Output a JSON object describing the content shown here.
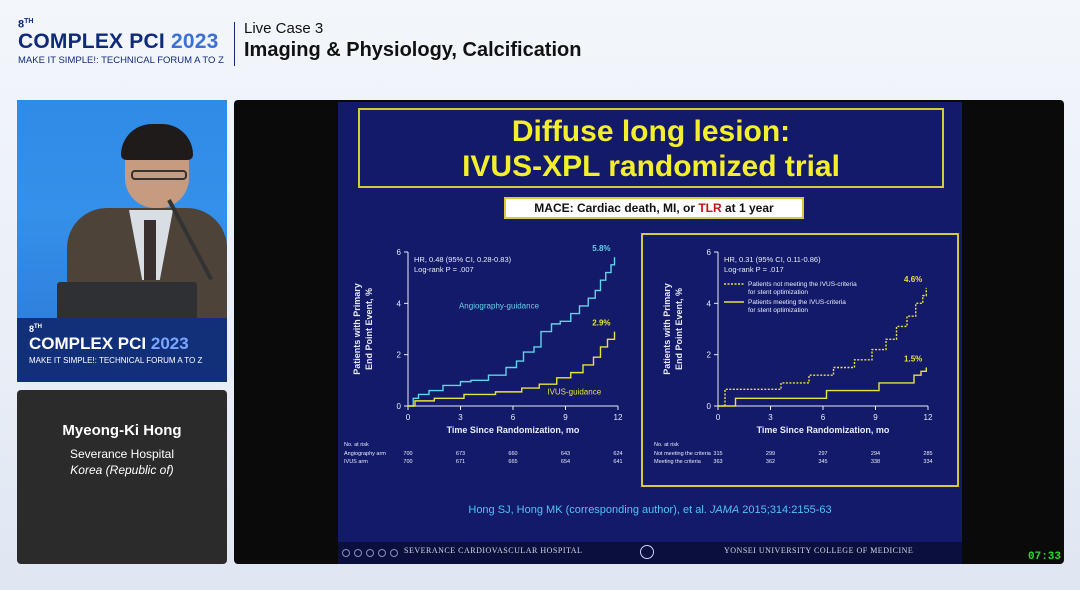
{
  "header": {
    "edition": "8",
    "edition_suffix": "TH",
    "event_name": "COMPLEX PCI",
    "event_year": "2023",
    "tagline": "MAKE IT SIMPLE!: TECHNICAL FORUM A TO Z",
    "session_case": "Live Case 3",
    "session_topic": "Imaging & Physiology, Calcification"
  },
  "speaker": {
    "name": "Myeong-Ki Hong",
    "affiliation": "Severance Hospital",
    "country": "Korea (Republic of)"
  },
  "podium": {
    "edition": "8",
    "edition_suffix": "TH",
    "event_name": "COMPLEX PCI",
    "event_year": "2023",
    "tagline": "MAKE IT SIMPLE!: TECHNICAL FORUM A TO Z"
  },
  "slide": {
    "title_line1": "Diffuse long lesion:",
    "title_line2": "IVUS-XPL randomized trial",
    "endpoint_prefix": "MACE: Cardiac death, MI, or ",
    "endpoint_tlr": "TLR",
    "endpoint_suffix": " at 1 year",
    "reference_authors": "Hong SJ, Hong MK (corresponding author), et al. ",
    "reference_journal": "JAMA",
    "reference_citation": " 2015;314:2155-63",
    "footer_left": "SEVERANCE CARDIOVASCULAR HOSPITAL",
    "footer_right": "YONSEI UNIVERSITY COLLEGE OF MEDICINE"
  },
  "timer": "07:33",
  "colors": {
    "slide_bg": "#131a6a",
    "title_yellow": "#f4ef2c",
    "angio_cyan": "#5fd4e6",
    "ivus_yellow": "#e8e23a",
    "reference_blue": "#4fc3f7",
    "timer_green": "#22e22a"
  },
  "chart_data": [
    {
      "type": "line",
      "hr_text": "HR, 0.48 (95% CI, 0.28-0.83)",
      "logrank_text": "Log-rank P = .007",
      "xlabel": "Time Since Randomization, mo",
      "ylabel_line1": "Patients with Primary",
      "ylabel_line2": "End Point Event, %",
      "xlim": [
        0,
        12
      ],
      "ylim": [
        0,
        6
      ],
      "xticks": [
        "0",
        "3",
        "6",
        "9",
        "12"
      ],
      "yticks": [
        "0",
        "2",
        "4",
        "6"
      ],
      "series": [
        {
          "name": "Angiography-guidance",
          "color": "#5fd4e6",
          "end_label": "5.8%",
          "x": [
            0,
            0.3,
            0.6,
            1.2,
            2.0,
            3.0,
            3.6,
            4.6,
            5.6,
            6.2,
            6.6,
            7.2,
            7.6,
            8.2,
            8.7,
            9.3,
            9.8,
            10.3,
            10.7,
            11.0,
            11.3,
            11.6,
            11.8
          ],
          "y": [
            0,
            0.3,
            0.45,
            0.6,
            0.8,
            0.95,
            1.0,
            1.2,
            1.5,
            1.75,
            2.1,
            2.3,
            2.9,
            3.2,
            3.3,
            3.6,
            3.9,
            4.2,
            4.5,
            4.9,
            5.2,
            5.5,
            5.8
          ]
        },
        {
          "name": "IVUS-guidance",
          "color": "#e8e23a",
          "end_label": "2.9%",
          "x": [
            0,
            0.4,
            1.5,
            3.2,
            5.0,
            6.5,
            7.5,
            8.5,
            9.3,
            10.0,
            10.6,
            11.0,
            11.4,
            11.8
          ],
          "y": [
            0,
            0.2,
            0.3,
            0.45,
            0.55,
            0.7,
            0.85,
            1.1,
            1.3,
            1.6,
            1.9,
            2.3,
            2.6,
            2.9
          ]
        }
      ],
      "at_risk": {
        "header": "No. at risk",
        "rows": [
          {
            "label": "Angiography arm",
            "values": [
              "700",
              "673",
              "660",
              "643",
              "624"
            ]
          },
          {
            "label": "IVUS arm",
            "values": [
              "700",
              "671",
              "665",
              "654",
              "641"
            ]
          }
        ]
      }
    },
    {
      "type": "line",
      "hr_text": "HR, 0.31 (95% CI, 0.11-0.86)",
      "logrank_text": "Log-rank P = .017",
      "xlabel": "Time Since Randomization, mo",
      "ylabel_line1": "Patients with Primary",
      "ylabel_line2": "End Point Event, %",
      "xlim": [
        0,
        12
      ],
      "ylim": [
        0,
        6
      ],
      "xticks": [
        "0",
        "3",
        "6",
        "9",
        "12"
      ],
      "yticks": [
        "0",
        "2",
        "4",
        "6"
      ],
      "series": [
        {
          "name": "Patients not meeting the IVUS-criteria for stent optimization",
          "legend_line1": "Patients not meeting the IVUS-criteria",
          "legend_line2": "for stent optimization",
          "color": "#e8e23a",
          "dashed": true,
          "end_label": "4.6%",
          "x": [
            0,
            0.4,
            3.6,
            5.2,
            6.6,
            7.8,
            8.8,
            9.6,
            10.2,
            10.8,
            11.3,
            11.7,
            11.9
          ],
          "y": [
            0,
            0.65,
            0.9,
            1.2,
            1.5,
            1.8,
            2.2,
            2.6,
            3.1,
            3.5,
            4.0,
            4.3,
            4.6
          ]
        },
        {
          "name": "Patients meeting the IVUS-criteria for stent optimization",
          "legend_line1": "Patients meeting the IVUS-criteria",
          "legend_line2": "for stent optimization",
          "color": "#e8e23a",
          "dashed": false,
          "end_label": "1.5%",
          "x": [
            0,
            1.0,
            6.2,
            9.2,
            11.2,
            11.6,
            11.9
          ],
          "y": [
            0,
            0.3,
            0.6,
            0.9,
            1.2,
            1.35,
            1.5
          ]
        }
      ],
      "at_risk": {
        "header": "No. at risk",
        "rows": [
          {
            "label": "Not meeting the criteria",
            "values": [
              "315",
              "299",
              "297",
              "294",
              "285"
            ]
          },
          {
            "label": "Meeting the criteria",
            "values": [
              "363",
              "362",
              "345",
              "338",
              "334"
            ]
          }
        ]
      }
    }
  ]
}
